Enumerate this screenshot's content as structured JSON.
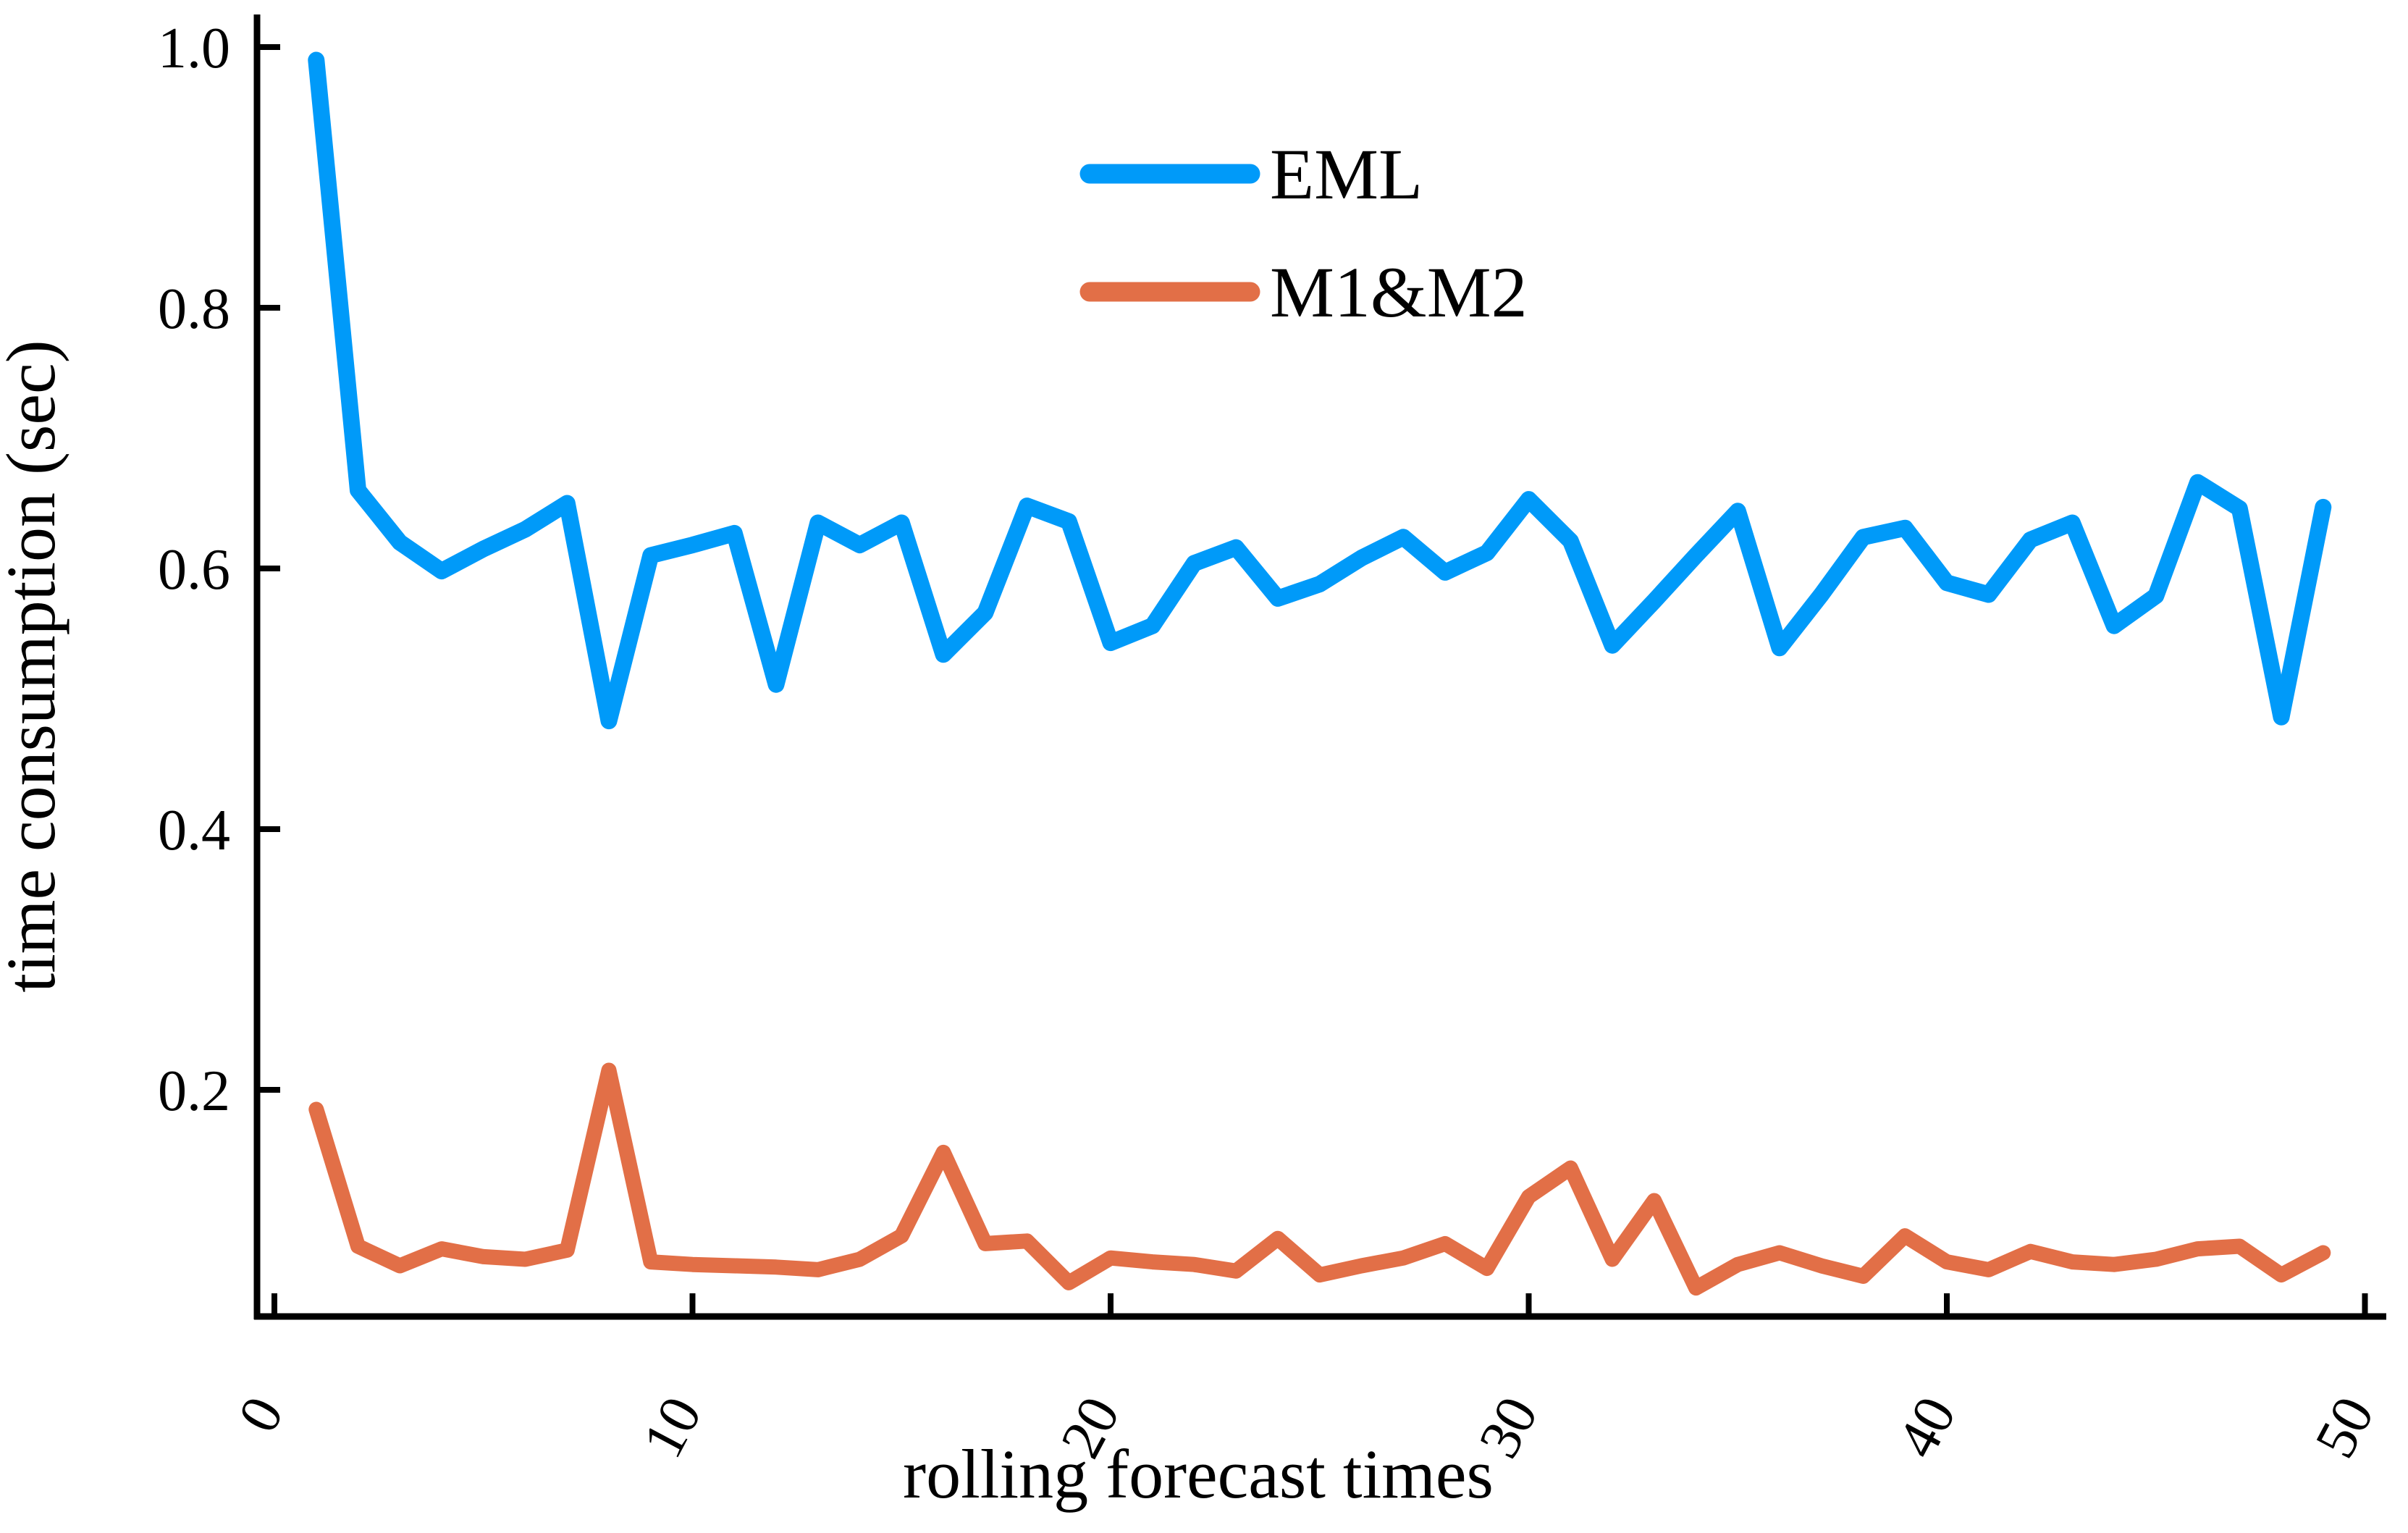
{
  "figure": {
    "background_color": "#ffffff",
    "axis_color": "#000000"
  },
  "chart_data": {
    "type": "line",
    "title": "",
    "xlabel": "rolling forecast times",
    "ylabel": "time consumption (sec)",
    "xlim": [
      -0.5,
      50.5
    ],
    "ylim": [
      0.03,
      1.03
    ],
    "grid": false,
    "legend_position": "upper center",
    "x_ticks": [
      "0",
      "10",
      "20",
      "30",
      "40",
      "50"
    ],
    "x_tick_values": [
      0,
      10,
      20,
      30,
      40,
      50
    ],
    "x_tick_rotation_deg": 62,
    "y_ticks": [
      "0.2",
      "0.4",
      "0.6",
      "0.8",
      "1.0"
    ],
    "y_tick_values": [
      0.2,
      0.4,
      0.6,
      0.8,
      1.0
    ],
    "x": [
      1,
      2,
      3,
      4,
      5,
      6,
      7,
      8,
      9,
      10,
      11,
      12,
      13,
      14,
      15,
      16,
      17,
      18,
      19,
      20,
      21,
      22,
      23,
      24,
      25,
      26,
      27,
      28,
      29,
      30,
      31,
      32,
      33,
      34,
      35,
      36,
      37,
      38,
      39,
      40,
      41,
      42,
      43,
      44,
      45,
      46,
      47,
      48,
      49
    ],
    "series": [
      {
        "name": "EML",
        "color": "#009AF9",
        "values": [
          0.99,
          0.66,
          0.62,
          0.598,
          0.615,
          0.63,
          0.65,
          0.483,
          0.61,
          0.618,
          0.627,
          0.511,
          0.635,
          0.618,
          0.635,
          0.534,
          0.566,
          0.648,
          0.636,
          0.543,
          0.556,
          0.604,
          0.616,
          0.577,
          0.588,
          0.608,
          0.624,
          0.597,
          0.612,
          0.653,
          0.621,
          0.541,
          0.575,
          0.61,
          0.644,
          0.539,
          0.58,
          0.624,
          0.631,
          0.589,
          0.58,
          0.622,
          0.635,
          0.556,
          0.579,
          0.666,
          0.646,
          0.486,
          0.647
        ]
      },
      {
        "name": "M1&M2",
        "color": "#E26F47",
        "values": [
          0.185,
          0.08,
          0.065,
          0.078,
          0.072,
          0.07,
          0.077,
          0.215,
          0.068,
          0.066,
          0.065,
          0.064,
          0.062,
          0.07,
          0.088,
          0.152,
          0.082,
          0.084,
          0.052,
          0.071,
          0.068,
          0.066,
          0.061,
          0.086,
          0.058,
          0.065,
          0.071,
          0.082,
          0.063,
          0.118,
          0.14,
          0.07,
          0.115,
          0.048,
          0.066,
          0.075,
          0.065,
          0.057,
          0.088,
          0.068,
          0.062,
          0.076,
          0.068,
          0.066,
          0.07,
          0.078,
          0.08,
          0.058,
          0.075
        ]
      }
    ]
  }
}
